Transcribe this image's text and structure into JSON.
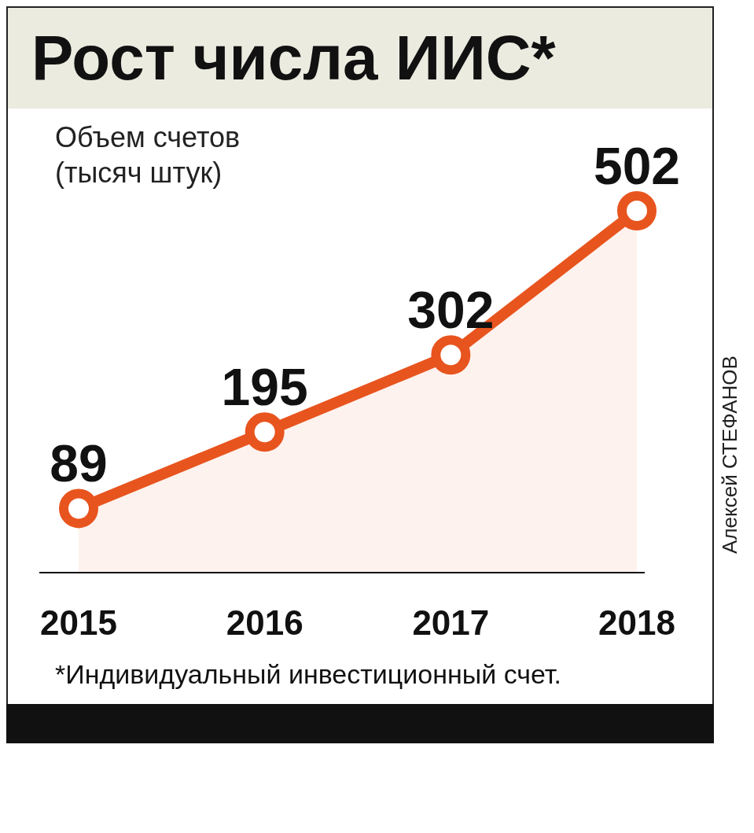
{
  "chart_data": {
    "type": "area",
    "title": "Рост числа ИИС*",
    "ylabel": "Объем счетов (тысяч штук)",
    "categories": [
      "2015",
      "2016",
      "2017",
      "2018"
    ],
    "values": [
      89,
      195,
      302,
      502
    ],
    "color": "#e8541e",
    "data_labels": true,
    "marker": "circle",
    "annotations": [
      "*Индивидуальный инвестиционный счет.",
      "Алексей СТЕФАНОВ"
    ]
  }
}
